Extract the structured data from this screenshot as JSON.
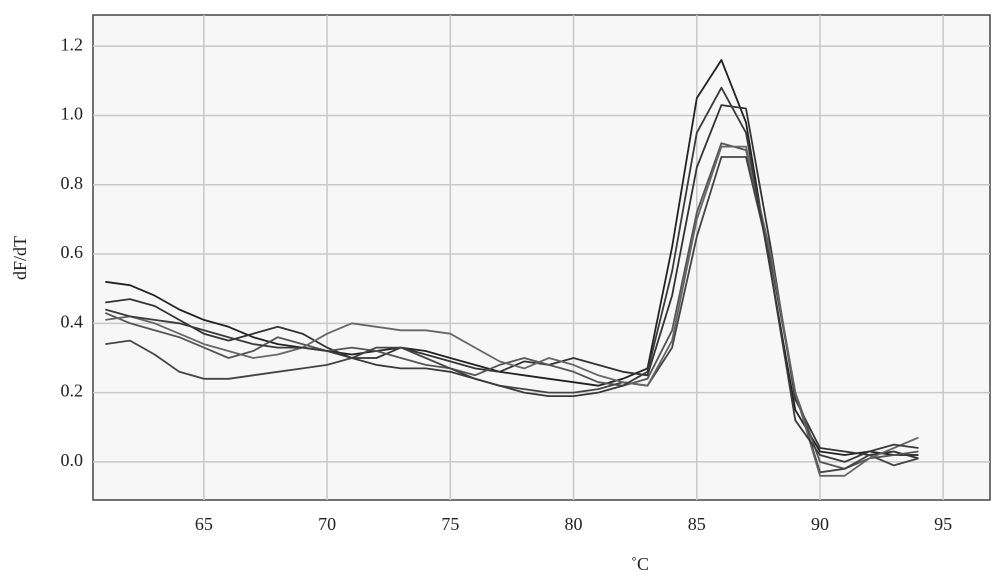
{
  "chart_data": {
    "type": "line",
    "y_label": "dF/dT",
    "x_label": "˚C",
    "x": [
      61,
      62,
      63,
      64,
      65,
      66,
      67,
      68,
      69,
      70,
      71,
      72,
      73,
      74,
      75,
      76,
      77,
      78,
      79,
      80,
      81,
      82,
      83,
      84,
      85,
      86,
      87,
      88,
      89,
      90,
      91,
      92,
      93,
      94
    ],
    "series": [
      {
        "color": "#222222",
        "values": [
          0.52,
          0.51,
          0.48,
          0.44,
          0.41,
          0.39,
          0.36,
          0.34,
          0.33,
          0.32,
          0.31,
          0.32,
          0.33,
          0.32,
          0.3,
          0.28,
          0.26,
          0.25,
          0.24,
          0.23,
          0.22,
          0.24,
          0.27,
          0.62,
          1.05,
          1.16,
          0.98,
          0.55,
          0.15,
          0.03,
          0.02,
          0.03,
          0.02,
          0.02
        ]
      },
      {
        "color": "#333333",
        "values": [
          0.46,
          0.47,
          0.45,
          0.41,
          0.37,
          0.35,
          0.37,
          0.39,
          0.37,
          0.33,
          0.3,
          0.3,
          0.33,
          0.31,
          0.29,
          0.27,
          0.26,
          0.29,
          0.28,
          0.3,
          0.28,
          0.26,
          0.25,
          0.48,
          0.85,
          1.03,
          1.02,
          0.62,
          0.18,
          0.04,
          0.03,
          0.02,
          0.03,
          0.01
        ]
      },
      {
        "color": "#555555",
        "values": [
          0.43,
          0.4,
          0.38,
          0.36,
          0.33,
          0.3,
          0.32,
          0.36,
          0.34,
          0.32,
          0.33,
          0.32,
          0.3,
          0.28,
          0.27,
          0.25,
          0.28,
          0.3,
          0.28,
          0.26,
          0.23,
          0.22,
          0.24,
          0.38,
          0.72,
          0.92,
          0.9,
          0.6,
          0.2,
          0.0,
          -0.02,
          0.01,
          0.02,
          0.03
        ]
      },
      {
        "color": "#444444",
        "values": [
          0.34,
          0.35,
          0.31,
          0.26,
          0.24,
          0.24,
          0.25,
          0.26,
          0.27,
          0.28,
          0.3,
          0.33,
          0.33,
          0.3,
          0.27,
          0.24,
          0.22,
          0.21,
          0.2,
          0.2,
          0.21,
          0.23,
          0.22,
          0.33,
          0.65,
          0.88,
          0.88,
          0.58,
          0.2,
          -0.03,
          -0.02,
          0.02,
          -0.01,
          0.01
        ]
      },
      {
        "color": "#666666",
        "values": [
          0.41,
          0.42,
          0.4,
          0.37,
          0.34,
          0.32,
          0.3,
          0.31,
          0.33,
          0.37,
          0.4,
          0.39,
          0.38,
          0.38,
          0.37,
          0.33,
          0.29,
          0.27,
          0.3,
          0.28,
          0.25,
          0.23,
          0.22,
          0.35,
          0.7,
          0.91,
          0.91,
          0.6,
          0.2,
          -0.04,
          -0.04,
          0.01,
          0.04,
          0.07
        ]
      },
      {
        "color": "#3a3a3a",
        "values": [
          0.44,
          0.42,
          0.41,
          0.4,
          0.38,
          0.36,
          0.34,
          0.33,
          0.33,
          0.32,
          0.3,
          0.28,
          0.27,
          0.27,
          0.26,
          0.24,
          0.22,
          0.2,
          0.19,
          0.19,
          0.2,
          0.22,
          0.26,
          0.55,
          0.95,
          1.08,
          0.95,
          0.55,
          0.12,
          0.02,
          0.0,
          0.03,
          0.05,
          0.04
        ]
      }
    ],
    "xlim": [
      60.5,
      96.9
    ],
    "xticks": [
      65,
      70,
      75,
      80,
      85,
      90,
      95
    ],
    "ylim": [
      -0.11,
      1.29
    ],
    "yticks": [
      {
        "value": 0,
        "label": "0.0"
      },
      0.2,
      0.4,
      0.6,
      0.8,
      {
        "value": 1,
        "label": "1.0"
      },
      1.2
    ],
    "grid": true
  }
}
